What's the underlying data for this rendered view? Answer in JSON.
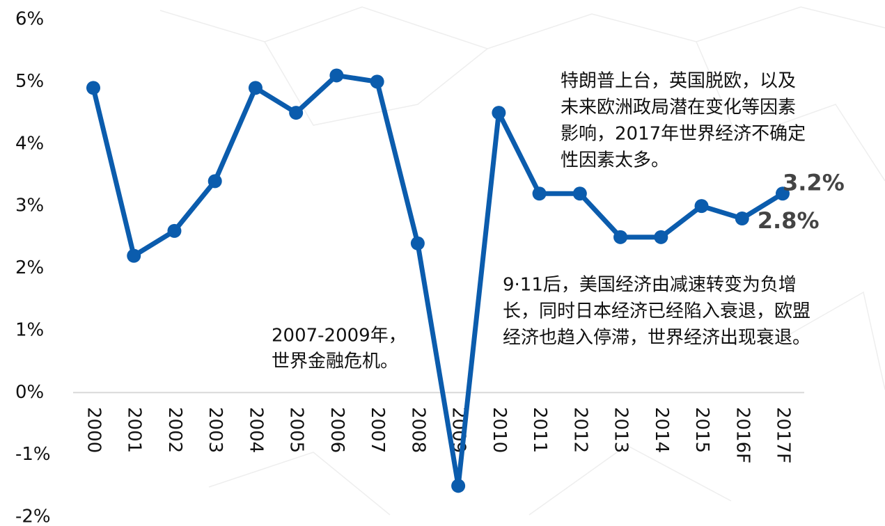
{
  "chart_data": {
    "type": "line",
    "categories": [
      "2000",
      "2001",
      "2002",
      "2003",
      "2004",
      "2005",
      "2006",
      "2007",
      "2008",
      "2009",
      "2010",
      "2011",
      "2012",
      "2013",
      "2014",
      "2015",
      "2016F",
      "2017F"
    ],
    "series": [
      {
        "color": "#0b5cad",
        "values": [
          4.9,
          2.2,
          2.6,
          3.4,
          4.9,
          4.5,
          5.1,
          5.0,
          2.4,
          -1.5,
          4.5,
          3.2,
          3.2,
          2.5,
          2.5,
          3.0,
          2.8,
          3.2
        ],
        "value_labels": [
          null,
          null,
          null,
          null,
          null,
          null,
          null,
          null,
          null,
          null,
          null,
          null,
          null,
          null,
          null,
          null,
          "2.8%",
          "3.2%"
        ]
      }
    ],
    "ylim": [
      -2,
      6
    ],
    "yticks": [
      {
        "value": -2,
        "label": "-2%"
      },
      {
        "value": -1,
        "label": "-1%"
      },
      {
        "value": 0,
        "label": "0%"
      },
      {
        "value": 1,
        "label": "1%"
      },
      {
        "value": 2,
        "label": "2%"
      },
      {
        "value": 3,
        "label": "3%"
      },
      {
        "value": 4,
        "label": "4%"
      },
      {
        "value": 5,
        "label": "5%"
      },
      {
        "value": 6,
        "label": "6%"
      }
    ],
    "annotations": [
      [
        "特朗普上台，英国脱欧，以及",
        "未来欧洲政局潜在变化等因素",
        "影响，2017年世界经济不确定",
        "性因素太多。"
      ],
      [
        "9·11后，美国经济由减速转变为负增",
        "长，同时日本经济已经陷入衰退，欧盟",
        "经济也趋入停滞，世界经济出现衰退。"
      ],
      [
        "2007-2009年，",
        "世界金融危机。"
      ]
    ]
  }
}
